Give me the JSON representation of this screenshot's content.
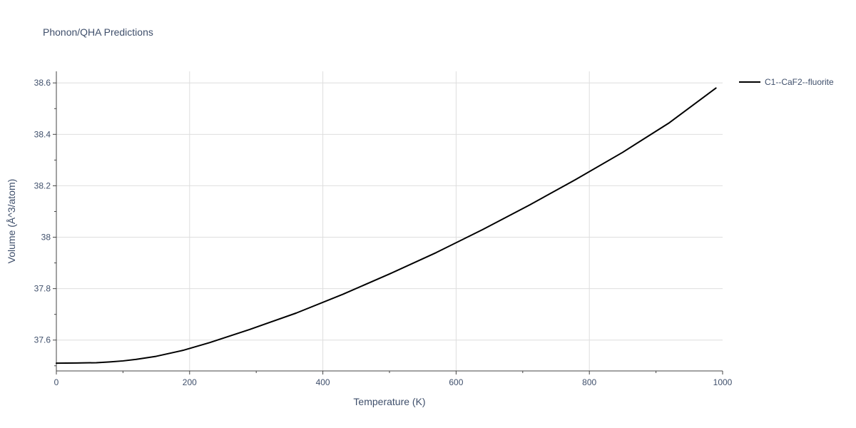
{
  "chart_data": {
    "type": "line",
    "title": "Phonon/QHA Predictions",
    "xlabel": "Temperature (K)",
    "ylabel": "Volume (Å^3/atom)",
    "xlim": [
      0,
      1000
    ],
    "ylim": [
      37.48,
      38.645
    ],
    "xticks": [
      0,
      200,
      400,
      600,
      800,
      1000
    ],
    "yticks": [
      37.6,
      37.8,
      38,
      38.2,
      38.4,
      38.6
    ],
    "xtick_labels": [
      "0",
      "200",
      "400",
      "600",
      "800",
      "1000"
    ],
    "ytick_labels": [
      "37.6",
      "37.8",
      "38",
      "38.2",
      "38.4",
      "38.6"
    ],
    "grid": true,
    "legend_position": "top-right outside",
    "series": [
      {
        "name": "C1--CaF2--fluorite",
        "color": "#000000",
        "x": [
          0,
          30,
          60,
          80,
          100,
          120,
          150,
          190,
          230,
          290,
          360,
          430,
          500,
          570,
          640,
          710,
          780,
          850,
          920,
          990
        ],
        "y": [
          37.51,
          37.511,
          37.512,
          37.515,
          37.519,
          37.525,
          37.537,
          37.56,
          37.59,
          37.641,
          37.705,
          37.778,
          37.857,
          37.94,
          38.03,
          38.125,
          38.225,
          38.33,
          38.445,
          38.58
        ]
      }
    ]
  }
}
